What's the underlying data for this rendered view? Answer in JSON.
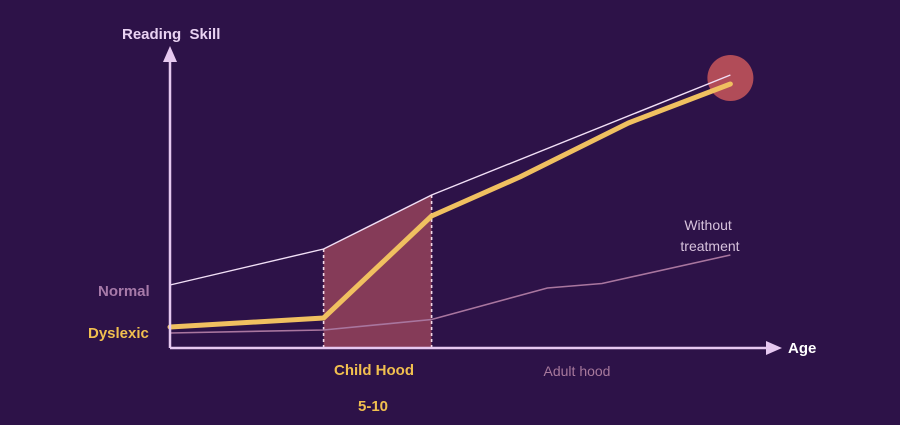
{
  "chart_data": {
    "type": "line",
    "ylabel": "Reading  Skill",
    "xlabel": "Age",
    "ylevels": {
      "normal": "Normal",
      "dyslexic": "Dyslexic"
    },
    "periods": {
      "child": "Child Hood",
      "child_range": "5-10",
      "adult": "Adult hood"
    },
    "annotation": "Without treatment",
    "colors": {
      "background": "#2d1248",
      "axis": "#e6c8f0",
      "normal": "#f1dff6",
      "dyslexic": "#f0c060",
      "untreated": "#a9769f",
      "window_fill": "#a34a5e",
      "target": "#c4545a"
    },
    "xlim": [
      0,
      100
    ],
    "ylim": [
      0,
      100
    ],
    "series": [
      {
        "key": "normal",
        "x": [
          0,
          25.6,
          43.6,
          93.4
        ],
        "y": [
          21,
          33,
          51,
          91
        ]
      },
      {
        "key": "dyslexic",
        "x": [
          0,
          25.6,
          43.6,
          58.3,
          76.4,
          93.4
        ],
        "y": [
          7,
          10,
          44,
          57,
          75,
          88
        ]
      },
      {
        "key": "untreated",
        "x": [
          0,
          25.6,
          43.6,
          62.9,
          72,
          93.4
        ],
        "y": [
          5,
          6,
          9.5,
          20,
          21.5,
          31
        ]
      }
    ],
    "treatment_window": [
      25.6,
      43.6
    ],
    "highlight": {
      "x": 93.4,
      "y": 90
    }
  }
}
